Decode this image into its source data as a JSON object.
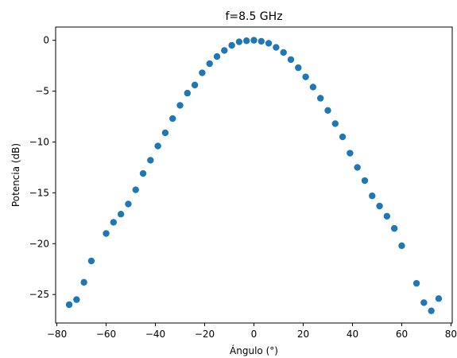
{
  "chart_data": {
    "type": "scatter",
    "title": "f=8.5 GHz",
    "xlabel": "Ángulo (°)",
    "ylabel": "Potencia (dB)",
    "xlim": [
      -80.5,
      80.5
    ],
    "ylim": [
      -27.8,
      1.3
    ],
    "xticks": [
      -80,
      -60,
      -40,
      -20,
      0,
      20,
      40,
      60,
      80
    ],
    "xtick_labels": [
      "−80",
      "−60",
      "−40",
      "−20",
      "0",
      "20",
      "40",
      "60",
      "80"
    ],
    "yticks": [
      0,
      -5,
      -10,
      -15,
      -20,
      -25
    ],
    "ytick_labels": [
      "0",
      "−5",
      "−10",
      "−15",
      "−20",
      "−25"
    ],
    "grid": false,
    "legend": "none",
    "marker_color": "#1f77b4",
    "series": [
      {
        "x": [
          -75,
          -72,
          -69,
          -66,
          -60,
          -57,
          -54,
          -51,
          -48,
          -45,
          -42,
          -39,
          -36,
          -33,
          -30,
          -27,
          -24,
          -21,
          -18,
          -15,
          -12,
          -9,
          -6,
          -3,
          0,
          3,
          6,
          9,
          12,
          15,
          18,
          21,
          24,
          27,
          30,
          33,
          36,
          39,
          42,
          45,
          48,
          51,
          54,
          57,
          60,
          66,
          69,
          72,
          75
        ],
        "y": [
          -26.0,
          -25.5,
          -23.8,
          -21.7,
          -19.0,
          -17.9,
          -17.1,
          -16.1,
          -14.7,
          -13.1,
          -11.8,
          -10.4,
          -9.1,
          -7.7,
          -6.4,
          -5.2,
          -4.4,
          -3.2,
          -2.3,
          -1.6,
          -1.0,
          -0.5,
          -0.15,
          -0.05,
          0.0,
          -0.1,
          -0.3,
          -0.7,
          -1.2,
          -1.9,
          -2.7,
          -3.6,
          -4.6,
          -5.7,
          -6.9,
          -8.2,
          -9.5,
          -11.1,
          -12.5,
          -13.8,
          -15.3,
          -16.3,
          -17.3,
          -18.5,
          -20.2,
          -23.9,
          -25.8,
          -26.6,
          -25.4
        ]
      }
    ]
  }
}
